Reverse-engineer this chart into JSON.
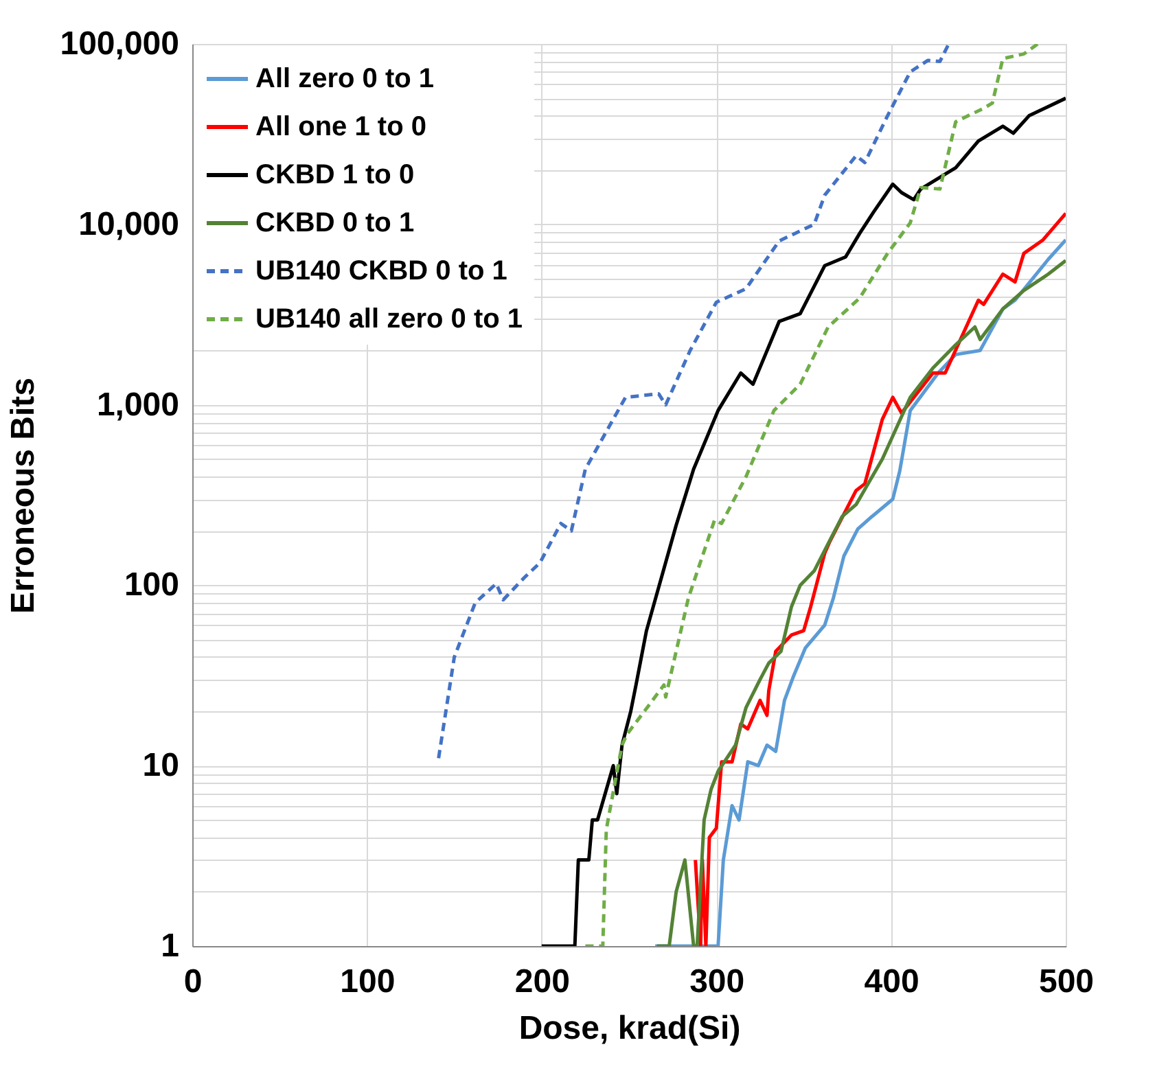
{
  "chart_data": {
    "type": "line",
    "xlabel": "Dose, krad(Si)",
    "ylabel": "Erroneous Bits",
    "log": "y",
    "grid": true,
    "legend": "top left",
    "marker": "none",
    "xlim": [
      0,
      500
    ],
    "xticks": [
      0,
      100,
      200,
      300,
      400,
      500
    ],
    "ylim": [
      1,
      100000
    ],
    "yticks": [
      {
        "value": 1,
        "label": "1"
      },
      {
        "value": 2,
        "label": null
      },
      {
        "value": 3,
        "label": null
      },
      {
        "value": 4,
        "label": null
      },
      {
        "value": 5,
        "label": null
      },
      {
        "value": 6,
        "label": null
      },
      {
        "value": 7,
        "label": null
      },
      {
        "value": 8,
        "label": null
      },
      {
        "value": 9,
        "label": null
      },
      {
        "value": 10,
        "label": "10"
      },
      {
        "value": 20,
        "label": null
      },
      {
        "value": 30,
        "label": null
      },
      {
        "value": 40,
        "label": null
      },
      {
        "value": 50,
        "label": null
      },
      {
        "value": 60,
        "label": null
      },
      {
        "value": 70,
        "label": null
      },
      {
        "value": 80,
        "label": null
      },
      {
        "value": 90,
        "label": null
      },
      {
        "value": 100,
        "label": "100"
      },
      {
        "value": 200,
        "label": null
      },
      {
        "value": 300,
        "label": null
      },
      {
        "value": 400,
        "label": null
      },
      {
        "value": 500,
        "label": null
      },
      {
        "value": 600,
        "label": null
      },
      {
        "value": 700,
        "label": null
      },
      {
        "value": 800,
        "label": null
      },
      {
        "value": 900,
        "label": null
      },
      {
        "value": 1000,
        "label": "1,000"
      },
      {
        "value": 2000,
        "label": null
      },
      {
        "value": 3000,
        "label": null
      },
      {
        "value": 4000,
        "label": null
      },
      {
        "value": 5000,
        "label": null
      },
      {
        "value": 6000,
        "label": null
      },
      {
        "value": 7000,
        "label": null
      },
      {
        "value": 8000,
        "label": null
      },
      {
        "value": 9000,
        "label": null
      },
      {
        "value": 10000,
        "label": "10,000"
      },
      {
        "value": 20000,
        "label": null
      },
      {
        "value": 30000,
        "label": null
      },
      {
        "value": 40000,
        "label": null
      },
      {
        "value": 50000,
        "label": null
      },
      {
        "value": 60000,
        "label": null
      },
      {
        "value": 70000,
        "label": null
      },
      {
        "value": 80000,
        "label": null
      },
      {
        "value": 90000,
        "label": null
      },
      {
        "value": 100000,
        "label": "100,000"
      }
    ],
    "series": [
      {
        "name": "All zero 0 to 1",
        "color": "#5b9bd5",
        "line_style": "solid",
        "x": [
          265,
          301,
          304,
          309,
          313,
          318,
          324,
          329,
          334,
          339,
          344,
          351,
          362,
          367,
          373,
          381,
          389,
          401,
          405,
          411,
          427,
          437,
          451,
          464,
          471,
          490,
          500
        ],
        "values": [
          1,
          1,
          3,
          6,
          5,
          10.5,
          10,
          13,
          12,
          23,
          31,
          45,
          60,
          85,
          145,
          205,
          240,
          300,
          430,
          930,
          1500,
          1900,
          2000,
          3400,
          3800,
          6400,
          8200
        ]
      },
      {
        "name": "All one 1 to 0",
        "color": "#ff0000",
        "line_style": "solid",
        "x": [
          288,
          291,
          292,
          294,
          296,
          300,
          303,
          309,
          314,
          318,
          325,
          329,
          330,
          334,
          343,
          350,
          354,
          362,
          365,
          380,
          385,
          395,
          401,
          406,
          424,
          431,
          450,
          453,
          464,
          471,
          476,
          487,
          500
        ],
        "values": [
          3,
          1,
          3,
          1,
          4,
          4.5,
          10.5,
          10.5,
          17,
          16,
          23,
          19,
          26,
          43,
          53,
          56,
          76,
          150,
          175,
          335,
          365,
          830,
          1100,
          900,
          1500,
          1500,
          3800,
          3600,
          5300,
          4800,
          6900,
          8200,
          11500
        ]
      },
      {
        "name": "CKBD 1 to 0",
        "color": "#000000",
        "line_style": "solid",
        "x": [
          200,
          219,
          221,
          227,
          229,
          232,
          241,
          243,
          246,
          251,
          254,
          260,
          277,
          287,
          301,
          314,
          321,
          336,
          348,
          362,
          374,
          382,
          390,
          401,
          406,
          413,
          417,
          437,
          450,
          464,
          470,
          479,
          490,
          500
        ],
        "values": [
          1,
          1,
          3,
          3,
          5,
          5,
          10,
          7,
          13,
          20,
          28,
          56,
          215,
          440,
          930,
          1500,
          1300,
          2900,
          3200,
          5900,
          6600,
          8900,
          11700,
          16700,
          15000,
          13700,
          15700,
          20600,
          29000,
          35000,
          32000,
          40000,
          45000,
          50000
        ]
      },
      {
        "name": "CKBD 0 to 1",
        "color": "#548235",
        "line_style": "solid",
        "x": [
          266,
          273,
          277,
          282,
          287,
          289,
          293,
          297,
          301,
          311,
          317,
          325,
          330,
          337,
          343,
          348,
          356,
          364,
          372,
          380,
          395,
          411,
          424,
          437,
          448,
          451,
          464,
          476,
          490,
          500
        ],
        "values": [
          1,
          1,
          2,
          3,
          1,
          1,
          5,
          7.4,
          9.3,
          13,
          21,
          30,
          37,
          43,
          76,
          100,
          120,
          170,
          240,
          280,
          500,
          1100,
          1600,
          2150,
          2700,
          2300,
          3400,
          4300,
          5300,
          6300
        ]
      },
      {
        "name": "UB140 CKBD 0 to 1",
        "color": "#4472c4",
        "line_style": "dashed",
        "x": [
          141,
          150,
          162,
          174,
          178,
          190,
          199,
          211,
          217,
          225,
          248,
          267,
          271,
          285,
          300,
          317,
          336,
          356,
          362,
          380,
          385,
          398,
          411,
          421,
          428,
          433
        ],
        "values": [
          11,
          40,
          80,
          102,
          83,
          110,
          133,
          220,
          200,
          440,
          1100,
          1150,
          1000,
          2000,
          3700,
          4400,
          8100,
          10000,
          14500,
          24000,
          22000,
          40000,
          70000,
          81000,
          80000,
          100000
        ]
      },
      {
        "name": "UB140 all zero 0 to 1",
        "color": "#70ad47",
        "line_style": "dashed",
        "x": [
          225,
          235,
          237,
          238,
          246,
          249,
          262,
          270,
          271,
          284,
          299,
          303,
          317,
          333,
          348,
          364,
          382,
          398,
          411,
          417,
          428,
          437,
          453,
          458,
          464,
          476,
          484
        ],
        "values": [
          1,
          1,
          4.4,
          5,
          13,
          15,
          22,
          28,
          24,
          85,
          230,
          220,
          400,
          930,
          1300,
          2700,
          3900,
          6900,
          10200,
          16000,
          15700,
          37000,
          44000,
          47000,
          83000,
          88000,
          100000
        ]
      }
    ]
  }
}
